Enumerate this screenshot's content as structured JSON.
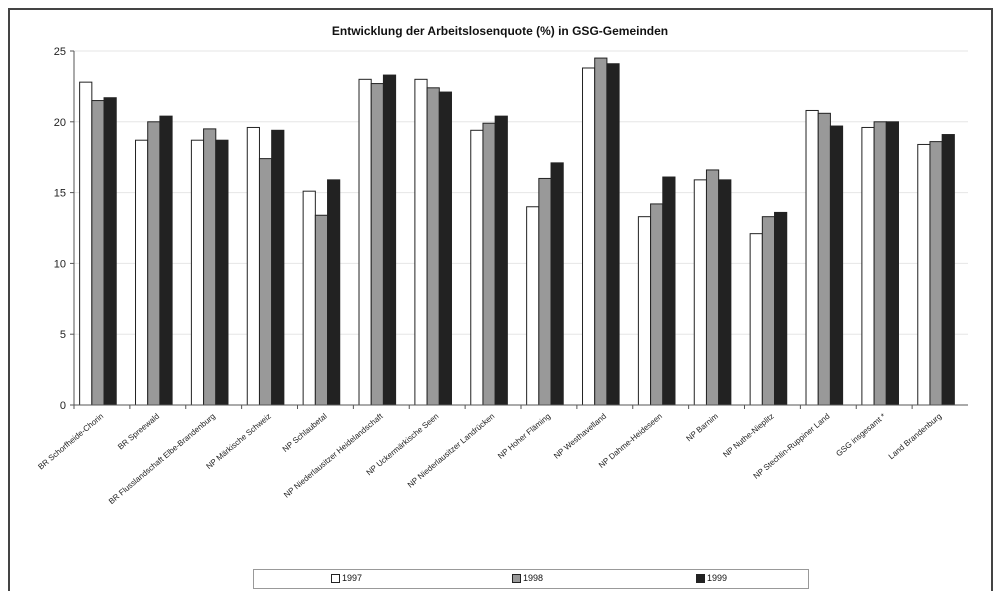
{
  "chart_data": {
    "type": "bar",
    "title": "Entwicklung der Arbeitslosenquote (%) in GSG-Gemeinden",
    "xlabel": "",
    "ylabel": "",
    "ylim": [
      0,
      25
    ],
    "yticks": [
      "0",
      "5",
      "10",
      "15",
      "20",
      "25"
    ],
    "grid": true,
    "legend_position": "bottom",
    "categories": [
      "BR Schorfheide-Chorin",
      "BR Spreewald",
      "BR Flusslandschaft Elbe-Brandenburg",
      "NP Märkische Schweiz",
      "NP Schlaubetal",
      "NP Niederlausitzer Heidelandschaft",
      "NP Uckermärkische Seen",
      "NP Niederlausitzer Landrücken",
      "NP Hoher Fläming",
      "NP Westhavelland",
      "NP Dahme-Heideseen",
      "NP Barnim",
      "NP Nuthe-Nieplitz",
      "NP Stechlin-Ruppiner Land",
      "GSG insgesamt *",
      "Land Brandenburg"
    ],
    "series": [
      {
        "name": "1997",
        "color": "#ffffff",
        "values": [
          22.8,
          18.7,
          18.7,
          19.6,
          15.1,
          23.0,
          23.0,
          19.4,
          14.0,
          23.8,
          13.3,
          15.9,
          12.1,
          20.8,
          19.6,
          18.4
        ]
      },
      {
        "name": "1998",
        "color": "#999999",
        "values": [
          21.5,
          20.0,
          19.5,
          17.4,
          13.4,
          22.7,
          22.4,
          19.9,
          16.0,
          24.5,
          14.2,
          16.6,
          13.3,
          20.6,
          20.0,
          18.6
        ]
      },
      {
        "name": "1999",
        "color": "#222222",
        "values": [
          21.7,
          20.4,
          18.7,
          19.4,
          15.9,
          23.3,
          22.1,
          20.4,
          17.1,
          24.1,
          16.1,
          15.9,
          13.6,
          19.7,
          20.0,
          19.1
        ]
      }
    ]
  },
  "legend": {
    "items": [
      {
        "label": "1997"
      },
      {
        "label": "1998"
      },
      {
        "label": "1999"
      }
    ]
  }
}
